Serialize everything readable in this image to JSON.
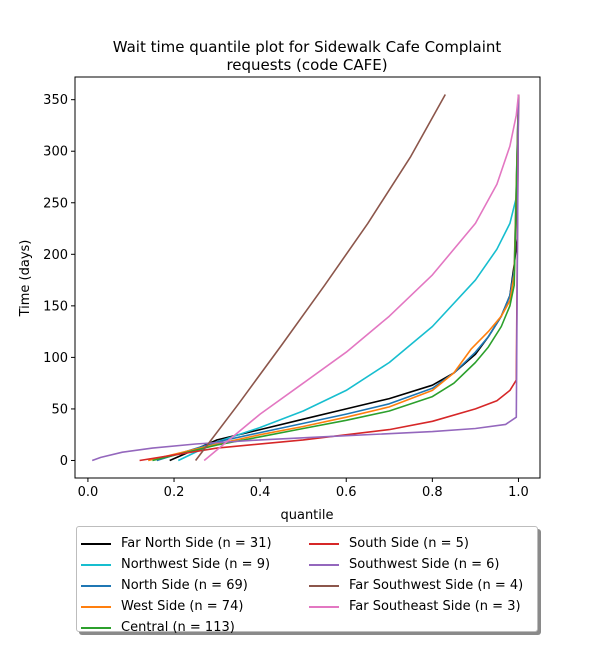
{
  "chart_data": {
    "type": "line",
    "title_lines": [
      "Wait time quantile plot for Sidewalk Cafe Complaint",
      "requests (code CAFE)"
    ],
    "xlabel": "quantile",
    "ylabel": "Time (days)",
    "xlim": [
      -0.03,
      1.05
    ],
    "ylim": [
      -17,
      372
    ],
    "xticks": [
      0.0,
      0.2,
      0.4,
      0.6,
      0.8,
      1.0
    ],
    "xtick_labels": [
      "0.0",
      "0.2",
      "0.4",
      "0.6",
      "0.8",
      "1.0"
    ],
    "yticks": [
      0,
      50,
      100,
      150,
      200,
      250,
      300,
      350
    ],
    "ytick_labels": [
      "0",
      "50",
      "100",
      "150",
      "200",
      "250",
      "300",
      "350"
    ],
    "grid": false,
    "legend_position": "below",
    "series": [
      {
        "name": "Far North Side (n = 31)",
        "color": "#000000",
        "x": [
          0.19,
          0.3,
          0.4,
          0.5,
          0.6,
          0.7,
          0.8,
          0.85,
          0.9,
          0.93,
          0.96,
          0.98,
          0.99,
          0.997,
          1.0
        ],
        "y": [
          0,
          20,
          30,
          40,
          50,
          60,
          73,
          85,
          103,
          120,
          140,
          160,
          190,
          215,
          355
        ]
      },
      {
        "name": "Northwest Side (n = 9)",
        "color": "#17becf",
        "x": [
          0.21,
          0.3,
          0.4,
          0.5,
          0.6,
          0.7,
          0.8,
          0.9,
          0.95,
          0.98,
          0.995,
          1.0
        ],
        "y": [
          0,
          18,
          32,
          48,
          68,
          95,
          130,
          175,
          205,
          230,
          255,
          355
        ]
      },
      {
        "name": "North Side (n = 69)",
        "color": "#1f77b4",
        "x": [
          0.16,
          0.3,
          0.4,
          0.5,
          0.6,
          0.7,
          0.8,
          0.85,
          0.9,
          0.93,
          0.96,
          0.98,
          0.99,
          1.0
        ],
        "y": [
          0,
          18,
          27,
          36,
          45,
          55,
          70,
          85,
          105,
          120,
          140,
          160,
          185,
          355
        ]
      },
      {
        "name": "West Side (n = 74)",
        "color": "#ff7f0e",
        "x": [
          0.14,
          0.3,
          0.4,
          0.5,
          0.6,
          0.7,
          0.8,
          0.85,
          0.89,
          0.93,
          0.96,
          0.98,
          0.99,
          1.0
        ],
        "y": [
          0,
          16,
          25,
          33,
          42,
          52,
          68,
          85,
          108,
          125,
          140,
          155,
          180,
          355
        ]
      },
      {
        "name": "Central (n = 113)",
        "color": "#2ca02c",
        "x": [
          0.15,
          0.3,
          0.4,
          0.5,
          0.6,
          0.7,
          0.8,
          0.85,
          0.9,
          0.93,
          0.96,
          0.98,
          0.99,
          1.0
        ],
        "y": [
          0,
          15,
          23,
          31,
          39,
          48,
          62,
          75,
          95,
          110,
          130,
          150,
          170,
          355
        ]
      },
      {
        "name": "South Side (n = 5)",
        "color": "#d62728",
        "x": [
          0.12,
          0.3,
          0.5,
          0.7,
          0.8,
          0.9,
          0.95,
          0.98,
          0.995,
          1.0
        ],
        "y": [
          0,
          12,
          20,
          30,
          38,
          50,
          58,
          68,
          78,
          355
        ]
      },
      {
        "name": "Southwest Side (n = 6)",
        "color": "#9467bd",
        "x": [
          0.01,
          0.03,
          0.08,
          0.15,
          0.25,
          0.4,
          0.6,
          0.8,
          0.9,
          0.97,
          0.995,
          1.0
        ],
        "y": [
          0,
          3,
          8,
          12,
          16,
          20,
          24,
          28,
          31,
          35,
          42,
          355
        ]
      },
      {
        "name": "Far Southwest Side (n = 4)",
        "color": "#8c564b",
        "x": [
          0.25,
          0.35,
          0.45,
          0.55,
          0.65,
          0.75,
          0.83
        ],
        "y": [
          0,
          55,
          112,
          170,
          230,
          295,
          355
        ]
      },
      {
        "name": "Far Southeast Side (n = 3)",
        "color": "#e377c2",
        "x": [
          0.27,
          0.4,
          0.5,
          0.6,
          0.7,
          0.8,
          0.9,
          0.95,
          0.98,
          0.995,
          1.0
        ],
        "y": [
          0,
          45,
          75,
          105,
          140,
          180,
          230,
          268,
          305,
          335,
          355
        ]
      }
    ]
  }
}
